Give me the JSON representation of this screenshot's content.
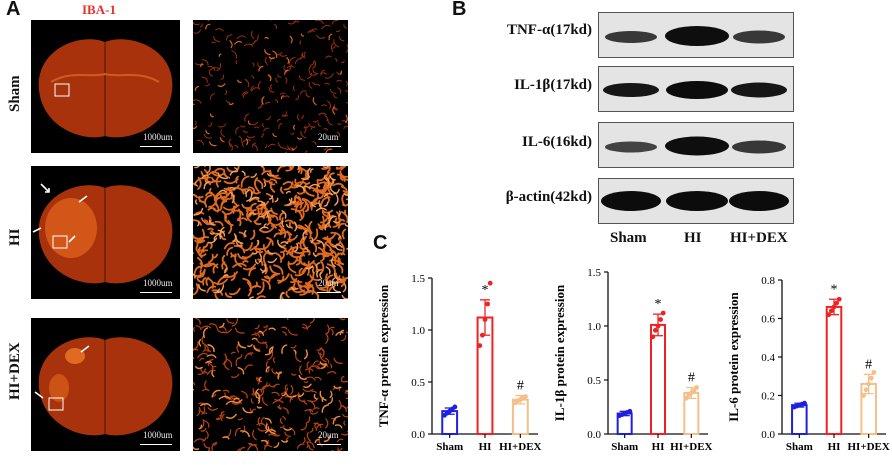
{
  "panel_a": {
    "letter": "A",
    "stain_title": "IBA-1",
    "rows": [
      {
        "label": "Sham",
        "scale_left": "1000um",
        "scale_right": "20um"
      },
      {
        "label": "HI",
        "scale_left": "1000um",
        "scale_right": "20um"
      },
      {
        "label": "HI+DEX",
        "scale_left": "1000um",
        "scale_right": "20um"
      }
    ]
  },
  "panel_b": {
    "letter": "B",
    "bands": [
      {
        "label": "TNF-α(17kd)"
      },
      {
        "label": "IL-1β(17kd)"
      },
      {
        "label": "IL-6(16kd)"
      },
      {
        "label": "β-actin(42kd)"
      }
    ],
    "lanes": [
      "Sham",
      "HI",
      "HI+DEX"
    ]
  },
  "panel_c": {
    "letter": "C"
  },
  "colors": {
    "sham": "#1f1fe0",
    "hi": "#ee2222",
    "hidex": "#f5bf8a",
    "tissue": "#c2410c"
  },
  "chart_data": [
    {
      "type": "bar",
      "title": "",
      "xlabel": "",
      "ylabel": "TNF-α protein expression",
      "categories": [
        "Sham",
        "HI",
        "HI+DEX"
      ],
      "values": [
        0.22,
        1.12,
        0.33
      ],
      "errors": [
        0.03,
        0.17,
        0.04
      ],
      "points": [
        [
          0.18,
          0.2,
          0.22,
          0.24,
          0.26
        ],
        [
          0.85,
          0.95,
          1.1,
          1.25,
          1.45
        ],
        [
          0.3,
          0.32,
          0.33,
          0.35,
          0.36
        ]
      ],
      "annotations": [
        "",
        "*",
        "#"
      ],
      "ylim": [
        0,
        1.5
      ],
      "yticks": [
        "0.0",
        "0.5",
        "1.0",
        "1.5"
      ]
    },
    {
      "type": "bar",
      "title": "",
      "xlabel": "",
      "ylabel": "IL-1β protein expression",
      "categories": [
        "Sham",
        "HI",
        "HI+DEX"
      ],
      "values": [
        0.19,
        1.01,
        0.38
      ],
      "errors": [
        0.02,
        0.1,
        0.05
      ],
      "points": [
        [
          0.17,
          0.18,
          0.19,
          0.2,
          0.21
        ],
        [
          0.9,
          0.96,
          1.0,
          1.06,
          1.12
        ],
        [
          0.33,
          0.36,
          0.38,
          0.4,
          0.43
        ]
      ],
      "annotations": [
        "",
        "*",
        "#"
      ],
      "ylim": [
        0,
        1.5
      ],
      "yticks": [
        "0.0",
        "0.5",
        "1.0",
        "1.5"
      ]
    },
    {
      "type": "bar",
      "title": "",
      "xlabel": "",
      "ylabel": "IL-6 protein expression",
      "categories": [
        "Sham",
        "HI",
        "HI+DEX"
      ],
      "values": [
        0.15,
        0.66,
        0.26
      ],
      "errors": [
        0.01,
        0.04,
        0.05
      ],
      "points": [
        [
          0.14,
          0.145,
          0.15,
          0.155,
          0.16
        ],
        [
          0.62,
          0.64,
          0.66,
          0.68,
          0.7
        ],
        [
          0.2,
          0.23,
          0.26,
          0.29,
          0.32
        ]
      ],
      "annotations": [
        "",
        "*",
        "#"
      ],
      "ylim": [
        0,
        0.8
      ],
      "yticks": [
        "0.0",
        "0.2",
        "0.4",
        "0.6",
        "0.8"
      ]
    }
  ]
}
